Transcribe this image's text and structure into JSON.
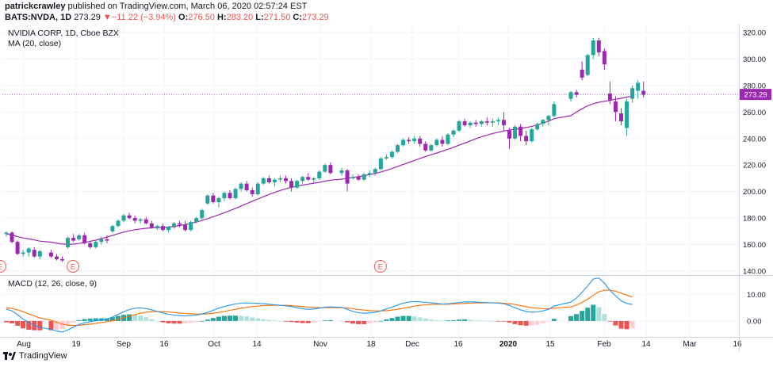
{
  "header": {
    "author": "patrickcrawley",
    "published": "published on TradingView.com, March 06, 2020 02:57:24 EST",
    "symbol": "BATS:NVDA, 1D",
    "last": "273.29",
    "change_arrow": "▼",
    "change": "−11.22 (−3.94%)",
    "o_label": "O:",
    "o": "276.50",
    "h_label": "H:",
    "h": "283.20",
    "l_label": "L:",
    "l": "271.50",
    "c_label": "C:",
    "c": "273.29"
  },
  "pane_labels": {
    "title": "NVIDIA CORP, 1D, Cboe BZX",
    "ma": "MA (20, close)",
    "macd": "MACD (12, 26, close, 9)"
  },
  "footer": {
    "brand": "TradingView"
  },
  "colors": {
    "up": "#26a69a",
    "down": "#9c27b0",
    "ma": "#9c27b0",
    "macd": "#2196f3",
    "signal": "#ff6d00",
    "hist_up_strong": "#26a69a",
    "hist_up_weak": "#b2dfdb",
    "hist_down_strong": "#ef5350",
    "hist_down_weak": "#ffcdd2"
  },
  "chart_data": {
    "type": "candlestick",
    "price_axis": {
      "ticks": [
        140,
        160,
        180,
        200,
        220,
        240,
        260,
        280,
        300,
        320
      ],
      "tick_labels": [
        "140.00",
        "160.00",
        "180.00",
        "200.00",
        "220.00",
        "240.00",
        "260.00",
        "280.00",
        "300.00",
        "320.00"
      ],
      "ylim": [
        137,
        326
      ]
    },
    "last_price": 273.29,
    "last_price_label": "273.29",
    "x_ticks": [
      "Aug",
      "19",
      "Sep",
      "16",
      "Oct",
      "14",
      "Nov",
      "18",
      "Dec",
      "16",
      "2020",
      "15",
      "Feb",
      "14",
      "Mar",
      "16"
    ],
    "earnings_marker_label": "E",
    "macd_axis": {
      "ticks": [
        10,
        0
      ],
      "tick_labels": [
        "10.00",
        "0.00"
      ],
      "ylim": [
        -6,
        17
      ]
    },
    "candles": [
      [
        168,
        170,
        166,
        169
      ],
      [
        169,
        170,
        161,
        162
      ],
      [
        162,
        163,
        152,
        153
      ],
      [
        153,
        156,
        151,
        154
      ],
      [
        154,
        158,
        151,
        157
      ],
      [
        156,
        158,
        150,
        151
      ],
      [
        151,
        156,
        149,
        155
      ],
      [
        154,
        156,
        150,
        151
      ],
      [
        151,
        153,
        148,
        149
      ],
      [
        149,
        151,
        147,
        148
      ],
      [
        158,
        166,
        157,
        165
      ],
      [
        165,
        168,
        162,
        163
      ],
      [
        164,
        168,
        163,
        167
      ],
      [
        167,
        169,
        160,
        161
      ],
      [
        161,
        163,
        157,
        158
      ],
      [
        158,
        163,
        157,
        162
      ],
      [
        162,
        166,
        160,
        164
      ],
      [
        164,
        167,
        161,
        163
      ],
      [
        170,
        175,
        169,
        174
      ],
      [
        174,
        179,
        173,
        178
      ],
      [
        178,
        183,
        177,
        182
      ],
      [
        182,
        184,
        179,
        180
      ],
      [
        180,
        182,
        176,
        178
      ],
      [
        178,
        180,
        176,
        179
      ],
      [
        179,
        181,
        175,
        176
      ],
      [
        176,
        178,
        172,
        173
      ],
      [
        173,
        175,
        171,
        174
      ],
      [
        174,
        176,
        170,
        171
      ],
      [
        171,
        174,
        169,
        173
      ],
      [
        173,
        177,
        172,
        176
      ],
      [
        176,
        178,
        173,
        175
      ],
      [
        175,
        178,
        170,
        171
      ],
      [
        171,
        178,
        170,
        177
      ],
      [
        177,
        181,
        176,
        180
      ],
      [
        180,
        187,
        179,
        186
      ],
      [
        191,
        198,
        190,
        197
      ],
      [
        197,
        199,
        191,
        192
      ],
      [
        192,
        196,
        188,
        195
      ],
      [
        195,
        200,
        193,
        199
      ],
      [
        199,
        201,
        194,
        195
      ],
      [
        195,
        203,
        194,
        202
      ],
      [
        202,
        207,
        200,
        206
      ],
      [
        206,
        208,
        200,
        201
      ],
      [
        201,
        203,
        196,
        198
      ],
      [
        198,
        207,
        197,
        206
      ],
      [
        206,
        211,
        205,
        210
      ],
      [
        210,
        212,
        206,
        207
      ],
      [
        207,
        210,
        204,
        209
      ],
      [
        209,
        212,
        207,
        210
      ],
      [
        210,
        212,
        206,
        208
      ],
      [
        208,
        210,
        200,
        203
      ],
      [
        203,
        209,
        202,
        208
      ],
      [
        208,
        212,
        206,
        211
      ],
      [
        211,
        214,
        208,
        209
      ],
      [
        209,
        211,
        206,
        210
      ],
      [
        210,
        216,
        209,
        215
      ],
      [
        215,
        221,
        214,
        220
      ],
      [
        220,
        222,
        213,
        214
      ],
      [
        214,
        218,
        212,
        216
      ],
      [
        216,
        217,
        200,
        206
      ],
      [
        210,
        213,
        209,
        211
      ],
      [
        211,
        213,
        208,
        209
      ],
      [
        209,
        214,
        208,
        213
      ],
      [
        213,
        216,
        211,
        214
      ],
      [
        214,
        218,
        212,
        217
      ],
      [
        217,
        226,
        216,
        225
      ],
      [
        225,
        228,
        224,
        226
      ],
      [
        226,
        231,
        225,
        230
      ],
      [
        230,
        236,
        229,
        235
      ],
      [
        235,
        240,
        234,
        239
      ],
      [
        239,
        241,
        236,
        238
      ],
      [
        238,
        242,
        236,
        240
      ],
      [
        240,
        242,
        234,
        236
      ],
      [
        236,
        238,
        230,
        231
      ],
      [
        231,
        236,
        230,
        235
      ],
      [
        235,
        240,
        234,
        239
      ],
      [
        239,
        242,
        234,
        236
      ],
      [
        236,
        244,
        235,
        243
      ],
      [
        243,
        247,
        241,
        246
      ],
      [
        246,
        254,
        245,
        253
      ],
      [
        253,
        255,
        249,
        250
      ],
      [
        250,
        253,
        248,
        252
      ],
      [
        252,
        254,
        249,
        251
      ],
      [
        251,
        254,
        249,
        253
      ],
      [
        253,
        256,
        250,
        252
      ],
      [
        252,
        255,
        249,
        253
      ],
      [
        253,
        256,
        250,
        254
      ],
      [
        254,
        260,
        246,
        250
      ],
      [
        246,
        248,
        232,
        240
      ],
      [
        240,
        250,
        239,
        249
      ],
      [
        249,
        251,
        238,
        242
      ],
      [
        242,
        246,
        235,
        238
      ],
      [
        238,
        248,
        237,
        247
      ],
      [
        247,
        252,
        246,
        251
      ],
      [
        251,
        255,
        249,
        254
      ],
      [
        254,
        258,
        250,
        257
      ],
      [
        257,
        268,
        256,
        266
      ],
      [
        270,
        276,
        268,
        275
      ],
      [
        275,
        277,
        271,
        273
      ],
      [
        292,
        298,
        284,
        286
      ],
      [
        288,
        304,
        287,
        303
      ],
      [
        303,
        316,
        300,
        314
      ],
      [
        314,
        316,
        302,
        305
      ],
      [
        306,
        308,
        292,
        296
      ],
      [
        274,
        283,
        266,
        269
      ],
      [
        268,
        272,
        253,
        260
      ],
      [
        259,
        263,
        250,
        253
      ],
      [
        248,
        270,
        242,
        268
      ],
      [
        270,
        280,
        267,
        278
      ],
      [
        276,
        284,
        270,
        282
      ],
      [
        276,
        283,
        271,
        273
      ]
    ],
    "ma_gaps": [
      [
        6,
        1
      ],
      [
        57,
        1
      ],
      [
        96,
        2
      ]
    ],
    "ma": [
      168,
      167.2,
      166,
      165,
      164.3,
      163.5,
      162.6,
      161.8,
      161,
      160.4,
      160.2,
      160.3,
      160.8,
      161.6,
      162.5,
      163.4,
      164.5,
      165.6,
      166.9,
      168.2,
      169.4,
      170.4,
      171.2,
      171.8,
      172.3,
      172.6,
      172.8,
      172.9,
      173.2,
      173.7,
      174.3,
      175.1,
      176,
      177,
      178.2,
      179.6,
      181,
      182.5,
      184,
      185.6,
      187.3,
      189.1,
      190.9,
      192.7,
      194.4,
      196.1,
      197.8,
      199.4,
      200.8,
      202.1,
      203.2,
      204.1,
      204.9,
      205.6,
      206.3,
      207,
      207.8,
      208.6,
      209.4,
      210.1,
      210.7,
      211.3,
      212,
      212.8,
      213.7,
      214.8,
      216,
      217.4,
      218.9,
      220.5,
      222,
      223.5,
      225,
      226.4,
      227.8,
      229.1,
      230.5,
      231.9,
      233.4,
      235,
      236.6,
      238.2,
      239.8,
      241.3,
      242.6,
      243.8,
      244.8,
      245.7,
      246.4,
      247,
      247.6,
      248.3,
      249.2,
      250.3,
      251.6,
      253.2,
      255,
      257.3,
      260,
      262.5,
      264.7,
      266.3,
      267.4,
      268.1,
      268.8,
      269.6,
      270.4,
      271.3,
      272
    ],
    "macd": [
      4.5,
      3.8,
      2.4,
      0.7,
      -0.6,
      -1.6,
      -2.4,
      -3.2,
      -3.8,
      -4.2,
      -3.4,
      -2.3,
      -1.3,
      -0.7,
      -0.3,
      0.1,
      0.4,
      0.7,
      1.5,
      2.5,
      3.5,
      4.3,
      4.8,
      4.9,
      4.7,
      4.2,
      3.6,
      3,
      2.5,
      2.2,
      2,
      1.9,
      2,
      2.2,
      2.6,
      3.2,
      4,
      4.8,
      5.5,
      6,
      6.4,
      6.7,
      6.8,
      6.7,
      6.6,
      6.5,
      6.3,
      6.1,
      5.9,
      5.7,
      5.4,
      5,
      4.6,
      4.4,
      4.5,
      4.8,
      5.2,
      5.3,
      5.1,
      4.4,
      3.6,
      3.1,
      2.9,
      3,
      3.3,
      3.8,
      4.5,
      5.2,
      6,
      6.7,
      7.1,
      7.3,
      7.2,
      7,
      6.8,
      6.6,
      6.4,
      6.5,
      6.7,
      7,
      7.2,
      7.2,
      7.1,
      7,
      6.9,
      6.8,
      6.7,
      6.5,
      5.9,
      5,
      4.2,
      3.6,
      3.3,
      3.4,
      3.8,
      4.4,
      5.6,
      7.1,
      8.6,
      10.8,
      13.2,
      15.8,
      16.2,
      14.2,
      11.5,
      9.5,
      7.6,
      6.6,
      6.2
    ],
    "signal": [
      5,
      4.7,
      4.2,
      3.5,
      2.7,
      1.9,
      1.1,
      0.3,
      -0.5,
      -1.2,
      -1.6,
      -1.7,
      -1.6,
      -1.4,
      -1.2,
      -0.9,
      -0.6,
      -0.3,
      0.1,
      0.6,
      1.2,
      1.8,
      2.4,
      2.9,
      3.3,
      3.5,
      3.6,
      3.5,
      3.4,
      3.2,
      3,
      2.8,
      2.7,
      2.6,
      2.6,
      2.7,
      2.9,
      3.2,
      3.6,
      4,
      4.4,
      4.8,
      5.1,
      5.4,
      5.6,
      5.8,
      5.9,
      5.9,
      5.9,
      5.9,
      5.8,
      5.6,
      5.4,
      5.2,
      5.1,
      5,
      5,
      5,
      5,
      4.9,
      4.6,
      4.3,
      4.1,
      3.9,
      3.8,
      3.8,
      3.9,
      4.1,
      4.4,
      4.8,
      5.2,
      5.6,
      5.9,
      6.1,
      6.2,
      6.3,
      6.3,
      6.3,
      6.4,
      6.5,
      6.6,
      6.7,
      6.8,
      6.8,
      6.8,
      6.8,
      6.8,
      6.7,
      6.5,
      6.2,
      5.8,
      5.4,
      5,
      4.8,
      4.6,
      4.6,
      4.8,
      5.3,
      6,
      7,
      8.2,
      9.7,
      11,
      11.6,
      11.6,
      11.2,
      10.5,
      9.7,
      9
    ],
    "hist": [
      -0.5,
      -0.9,
      -1.8,
      -2.8,
      -3.3,
      -3.5,
      -3.5,
      -3.5,
      -3.3,
      -3,
      -1.8,
      -0.6,
      0.3,
      0.7,
      0.9,
      1,
      1,
      1,
      1.4,
      1.9,
      2.3,
      2.5,
      2.4,
      2,
      1.4,
      0.7,
      0,
      -0.5,
      -0.9,
      -1,
      -1,
      -0.9,
      -0.7,
      -0.4,
      0,
      0.5,
      1.1,
      1.6,
      1.9,
      2,
      2,
      1.9,
      1.7,
      1.3,
      1,
      0.7,
      0.4,
      0.2,
      0,
      -0.2,
      -0.4,
      -0.6,
      -0.8,
      -0.8,
      -0.6,
      -0.2,
      0.2,
      0.3,
      0.1,
      -0.5,
      -1,
      -1.2,
      -1.2,
      -0.9,
      -0.5,
      0,
      0.6,
      1.1,
      1.6,
      1.9,
      1.9,
      1.7,
      1.3,
      0.9,
      0.6,
      0.3,
      0.1,
      0.2,
      0.3,
      0.5,
      0.6,
      0.5,
      0.3,
      0.2,
      0.1,
      0,
      -0.1,
      -0.2,
      -0.6,
      -1.2,
      -1.6,
      -1.8,
      -1.7,
      -1.4,
      -0.8,
      -0.2,
      0.8,
      1.8,
      2.6,
      3.8,
      5,
      6.1,
      5.2,
      2.6,
      -0.1,
      -1.7,
      -2.9,
      -3.1,
      -2.8
    ]
  }
}
